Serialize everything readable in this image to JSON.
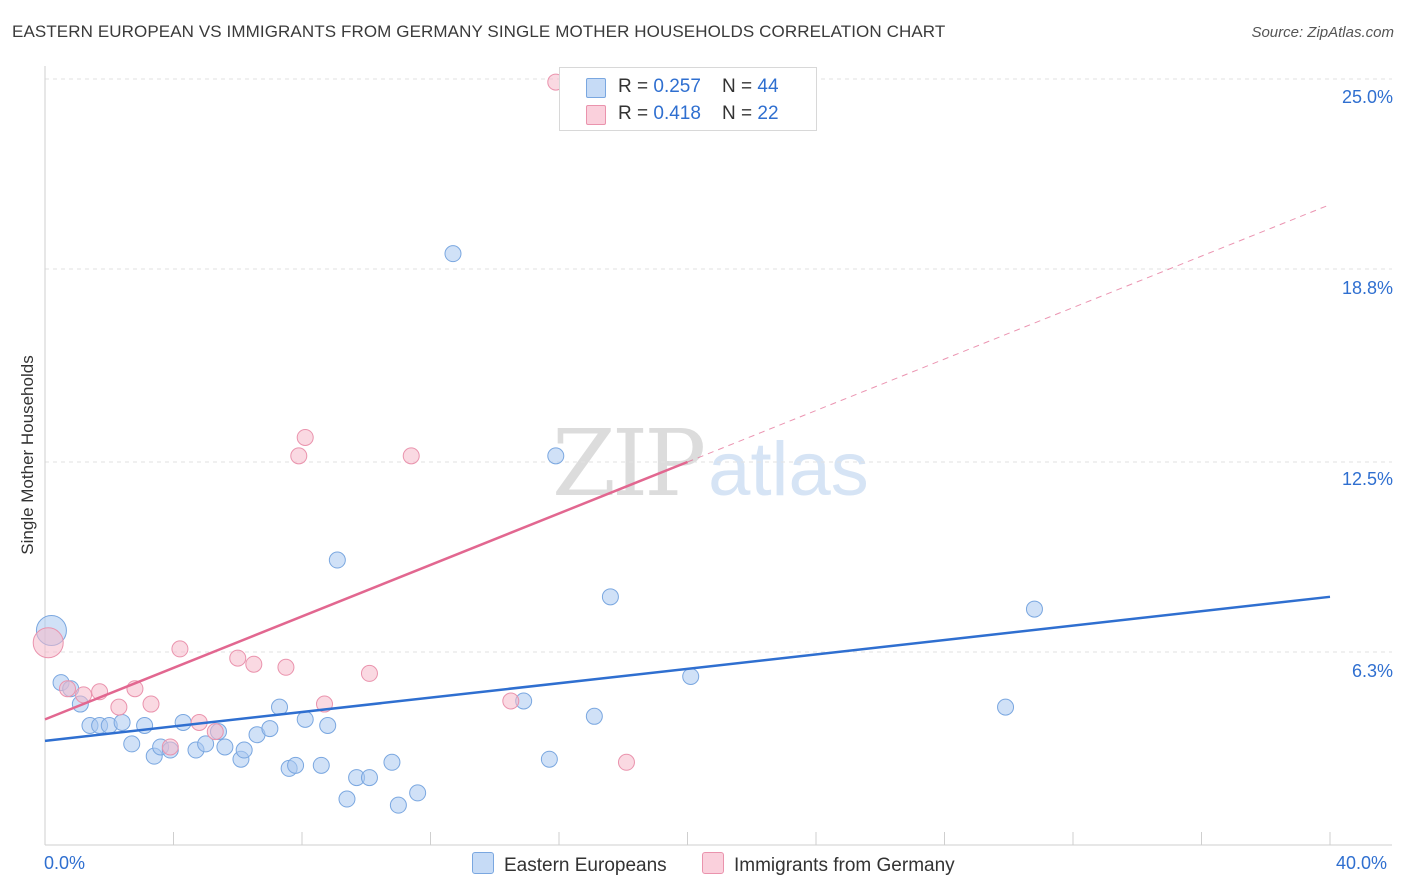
{
  "title": "EASTERN EUROPEAN VS IMMIGRANTS FROM GERMANY SINGLE MOTHER HOUSEHOLDS CORRELATION CHART",
  "source": "Source: ZipAtlas.com",
  "watermark": {
    "zip": "ZIP",
    "atlas": "atlas"
  },
  "legend_top": {
    "rows": [
      {
        "r_label": "R = ",
        "r_value": "0.257",
        "n_label": "N = ",
        "n_value": "44",
        "color": "#a9c8f0"
      },
      {
        "r_label": "R = ",
        "r_value": "0.418",
        "n_label": "N = ",
        "n_value": "22",
        "color": "#f6b9cb"
      }
    ]
  },
  "legend_bottom": {
    "items": [
      {
        "label": "Eastern Europeans",
        "color": "#a9c8f0"
      },
      {
        "label": "Immigrants from Germany",
        "color": "#f6b9cb"
      }
    ]
  },
  "chart_data": {
    "type": "scatter",
    "title": "EASTERN EUROPEAN VS IMMIGRANTS FROM GERMANY SINGLE MOTHER HOUSEHOLDS CORRELATION CHART",
    "xlabel": "",
    "ylabel": "Single Mother Households",
    "xlim": [
      0,
      40
    ],
    "ylim": [
      0,
      25.6
    ],
    "x_tick_labels": [
      "0.0%",
      "40.0%"
    ],
    "y_ticks": [
      6.3,
      12.5,
      18.8,
      25.0
    ],
    "y_tick_labels": [
      "6.3%",
      "12.5%",
      "18.8%",
      "25.0%"
    ],
    "grid": true,
    "series": [
      {
        "name": "Eastern Europeans",
        "color": "#a9c8f0",
        "stroke": "#7aa7e0",
        "trend": {
          "x0": 0,
          "y0": 3.4,
          "x1": 40,
          "y1": 8.1,
          "color": "#2f6fd0"
        },
        "points": [
          [
            0.2,
            7.0
          ],
          [
            0.5,
            5.3
          ],
          [
            0.8,
            5.1
          ],
          [
            1.1,
            4.6
          ],
          [
            1.4,
            3.9
          ],
          [
            1.7,
            3.9
          ],
          [
            2.0,
            3.9
          ],
          [
            2.4,
            4.0
          ],
          [
            2.7,
            3.3
          ],
          [
            3.1,
            3.9
          ],
          [
            3.4,
            2.9
          ],
          [
            3.6,
            3.2
          ],
          [
            3.9,
            3.1
          ],
          [
            4.3,
            4.0
          ],
          [
            4.7,
            3.1
          ],
          [
            5.0,
            3.3
          ],
          [
            5.4,
            3.7
          ],
          [
            5.6,
            3.2
          ],
          [
            6.1,
            2.8
          ],
          [
            6.2,
            3.1
          ],
          [
            6.6,
            3.6
          ],
          [
            7.0,
            3.8
          ],
          [
            7.3,
            4.5
          ],
          [
            7.6,
            2.5
          ],
          [
            7.8,
            2.6
          ],
          [
            8.1,
            4.1
          ],
          [
            8.6,
            2.6
          ],
          [
            8.8,
            3.9
          ],
          [
            9.1,
            9.3
          ],
          [
            9.4,
            1.5
          ],
          [
            9.7,
            2.2
          ],
          [
            10.1,
            2.2
          ],
          [
            10.8,
            2.7
          ],
          [
            11.0,
            1.3
          ],
          [
            11.6,
            1.7
          ],
          [
            12.7,
            19.3
          ],
          [
            14.9,
            4.7
          ],
          [
            15.7,
            2.8
          ],
          [
            15.9,
            12.7
          ],
          [
            17.1,
            4.2
          ],
          [
            17.6,
            8.1
          ],
          [
            20.1,
            5.5
          ],
          [
            29.9,
            4.5
          ],
          [
            30.8,
            7.7
          ]
        ],
        "big_point_index": 0
      },
      {
        "name": "Immigrants from Germany",
        "color": "#f6b9cb",
        "stroke": "#ea93ad",
        "trend": {
          "x0": 0,
          "y0": 4.1,
          "x1": 20,
          "y1": 12.5,
          "color": "#e26790",
          "dashed_to": {
            "x": 40,
            "y": 20.9
          }
        },
        "points": [
          [
            0.1,
            6.6
          ],
          [
            0.7,
            5.1
          ],
          [
            1.2,
            4.9
          ],
          [
            1.7,
            5.0
          ],
          [
            2.3,
            4.5
          ],
          [
            2.8,
            5.1
          ],
          [
            3.3,
            4.6
          ],
          [
            3.9,
            3.2
          ],
          [
            4.2,
            6.4
          ],
          [
            4.8,
            4.0
          ],
          [
            5.3,
            3.7
          ],
          [
            6.0,
            6.1
          ],
          [
            6.5,
            5.9
          ],
          [
            7.5,
            5.8
          ],
          [
            7.9,
            12.7
          ],
          [
            8.1,
            13.3
          ],
          [
            8.7,
            4.6
          ],
          [
            10.1,
            5.6
          ],
          [
            11.4,
            12.7
          ],
          [
            14.5,
            4.7
          ],
          [
            15.9,
            24.9
          ],
          [
            18.1,
            2.7
          ]
        ],
        "big_point_index": 0
      }
    ]
  }
}
